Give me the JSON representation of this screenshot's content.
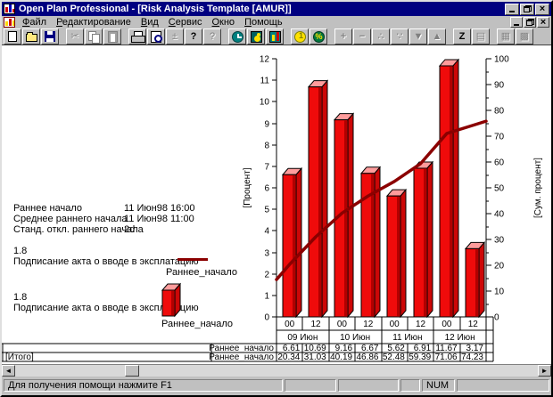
{
  "window": {
    "title": "Open Plan Professional - [Risk Analysis Template [AMUR]]"
  },
  "menu": {
    "items": [
      "Файл",
      "Редактирование",
      "Вид",
      "Сервис",
      "Окно",
      "Помощь"
    ]
  },
  "toolbar": {
    "buttons": [
      {
        "name": "new-icon",
        "icon": "page",
        "enabled": true
      },
      {
        "name": "open-icon",
        "icon": "folder",
        "enabled": true
      },
      {
        "name": "save-icon",
        "icon": "floppy",
        "enabled": true
      },
      {
        "name": "cut-icon",
        "glyph": "✂",
        "enabled": false,
        "gap": true
      },
      {
        "name": "copy-icon",
        "icon": "copy",
        "enabled": false
      },
      {
        "name": "paste-icon",
        "icon": "paste",
        "enabled": false
      },
      {
        "name": "print-icon",
        "icon": "printer",
        "enabled": true,
        "gap": true
      },
      {
        "name": "print-preview-icon",
        "icon": "preview",
        "enabled": true
      },
      {
        "name": "page-adjust-icon",
        "glyph": "±",
        "enabled": false
      },
      {
        "name": "help-icon",
        "glyph": "?",
        "enabled": true,
        "bold": true
      },
      {
        "name": "context-help-icon",
        "glyph": "?",
        "enabled": false
      },
      {
        "name": "time-analysis-icon",
        "icon": "clock",
        "enabled": true,
        "gap": true
      },
      {
        "name": "resource-analysis-icon",
        "icon": "duck",
        "enabled": true
      },
      {
        "name": "risk-analysis-icon",
        "icon": "riskchart",
        "enabled": true
      },
      {
        "name": "cost-analysis-icon",
        "icon": "coin",
        "enabled": true,
        "gap": true
      },
      {
        "name": "percent-complete-icon",
        "icon": "percent",
        "enabled": true
      },
      {
        "name": "add-icon",
        "glyph": "+",
        "enabled": false,
        "gap": true,
        "bold": true
      },
      {
        "name": "remove-icon",
        "glyph": "−",
        "enabled": false,
        "bold": true
      },
      {
        "name": "link-icon",
        "glyph": "∴",
        "enabled": false
      },
      {
        "name": "progress-icon",
        "glyph": "∵",
        "enabled": false
      },
      {
        "name": "move-down-icon",
        "glyph": "▼",
        "enabled": false
      },
      {
        "name": "move-up-icon",
        "glyph": "▲",
        "enabled": false
      },
      {
        "name": "zoom-icon",
        "glyph": "Z",
        "enabled": true,
        "gap": true,
        "bold": true
      },
      {
        "name": "notes-icon",
        "glyph": "▤",
        "enabled": false
      },
      {
        "name": "window-tile-icon",
        "glyph": "▦",
        "enabled": false,
        "gap": true
      },
      {
        "name": "window-cascade-icon",
        "glyph": "▩",
        "enabled": false
      }
    ]
  },
  "stats": {
    "rows": [
      {
        "label": "Раннее начало",
        "value": "11 Июн98 16:00"
      },
      {
        "label": "Среднее раннего начала",
        "value": "11 Июн98 11:00"
      },
      {
        "label": "Станд. откл.  раннего начала",
        "value": "2d"
      }
    ]
  },
  "legends": [
    {
      "value": "1.8",
      "label": "Подписание акта о вводе в эксплатацию",
      "series": "Раннее_начало",
      "swatch": "line"
    },
    {
      "value": "1.8",
      "label": "Подписание акта о вводе в эксплатацию",
      "series": "Раннее_начало",
      "swatch": "bar"
    }
  ],
  "chart_data": {
    "type": "bar",
    "subtype": "histogram with cumulative line (risk analysis)",
    "categories_hours": [
      "00",
      "12",
      "00",
      "12",
      "00",
      "12",
      "00",
      "12"
    ],
    "categories_dates": [
      "09 Июн",
      "10 Июн",
      "11 Июн",
      "12 Июн"
    ],
    "series": [
      {
        "name": "Раннее_начало",
        "type": "bar",
        "axis": "left",
        "color": "#ef0b0b",
        "values": [
          6.61,
          10.69,
          9.16,
          6.67,
          5.62,
          6.91,
          11.67,
          3.17
        ]
      },
      {
        "name": "Раннее_начало",
        "type": "line",
        "axis": "right",
        "color": "#8b0000",
        "values": [
          20.34,
          31.03,
          40.19,
          46.86,
          52.48,
          59.39,
          71.06,
          74.23
        ]
      }
    ],
    "left_axis": {
      "label": "[Процент]",
      "min": 0,
      "max": 12,
      "step": 1
    },
    "right_axis": {
      "label": "[Сум. процент]",
      "min": 0,
      "max": 100,
      "step": 10
    },
    "table": {
      "row1_label": "Раннее_начало",
      "row1_values": [
        "6.61",
        "10.69",
        "9.16",
        "6.67",
        "5.62",
        "6.91",
        "11.67",
        "3.17"
      ],
      "row2_group": "[Итого]",
      "row2_label": "Раннее_начало",
      "row2_values": [
        "20.34",
        "31.03",
        "40.19",
        "46.86",
        "52.48",
        "59.39",
        "71.06",
        "74.23"
      ]
    },
    "grid": false,
    "legend_position": "left"
  },
  "statusbar": {
    "message": "Для получения помощи нажмите F1",
    "num": "NUM"
  }
}
